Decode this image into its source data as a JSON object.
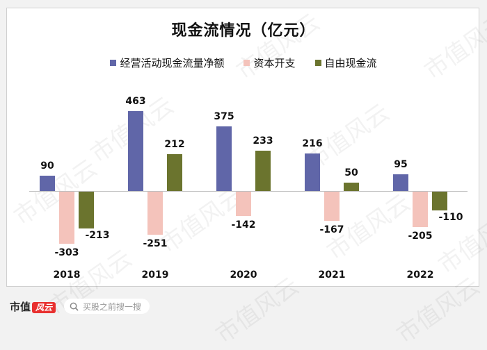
{
  "chart_data": {
    "type": "bar",
    "title": "现金流情况（亿元）",
    "categories": [
      "2018",
      "2019",
      "2020",
      "2021",
      "2022"
    ],
    "series": [
      {
        "name": "经营活动现金流量净额",
        "color": "#6066a8",
        "values": [
          90,
          463,
          375,
          216,
          95
        ]
      },
      {
        "name": "资本开支",
        "color": "#f4c3bb",
        "values": [
          -303,
          -251,
          -142,
          -167,
          -205
        ]
      },
      {
        "name": "自由现金流",
        "color": "#6b742e",
        "values": [
          -213,
          212,
          233,
          50,
          -110
        ]
      }
    ],
    "xlabel": "",
    "ylabel": "",
    "ylim": [
      -320,
      480
    ],
    "grid": false,
    "legend_position": "top"
  },
  "watermark": "市值风云",
  "footer": {
    "brand_text": "市值",
    "brand_badge": "风云",
    "search_placeholder": "买股之前搜一搜"
  }
}
